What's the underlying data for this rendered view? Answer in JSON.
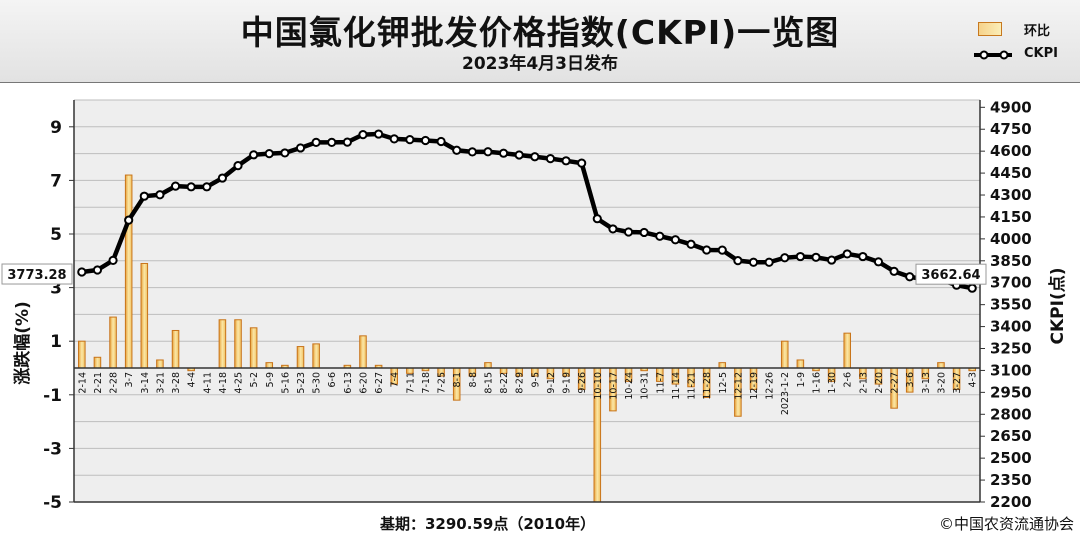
{
  "header": {
    "title": "中国氯化钾批发价格指数(CKPI)一览图",
    "subtitle": "2023年4月3日发布"
  },
  "footer": {
    "base": "基期：3290.59点（2010年）",
    "copyright": "©中国农资流通协会"
  },
  "chart_data": {
    "type": "bar+line",
    "title": "中国氯化钾批发价格指数(CKPI)一览图",
    "subtitle": "2023年4月3日发布",
    "ylabel_left": "涨跌幅(%)",
    "ylabel_right": "CKPI(点)",
    "ylim_left": [
      -5,
      10
    ],
    "ylim_right": [
      2200,
      4950
    ],
    "yticks_left": [
      9,
      7,
      5,
      3,
      1,
      -1,
      -3,
      -5
    ],
    "yticks_right": [
      4900,
      4750,
      4600,
      4450,
      4300,
      4150,
      4000,
      3850,
      3700,
      3550,
      3400,
      3250,
      3100,
      2950,
      2800,
      2650,
      2500,
      2350,
      2200
    ],
    "grid": true,
    "legend_position": "top-right",
    "categories": [
      "2-14",
      "2-21",
      "2-28",
      "3-7",
      "3-14",
      "3-21",
      "3-28",
      "4-4",
      "4-11",
      "4-18",
      "4-25",
      "5-2",
      "5-9",
      "5-16",
      "5-23",
      "5-30",
      "6-6",
      "6-13",
      "6-20",
      "6-27",
      "7-4",
      "7-11",
      "7-18",
      "7-25",
      "8-1",
      "8-8",
      "8-15",
      "8-22",
      "8-29",
      "9-5",
      "9-12",
      "9-19",
      "9-26",
      "10-10",
      "10-17",
      "10-24",
      "10-31",
      "11-7",
      "11-14",
      "11-21",
      "11-28",
      "12-5",
      "12-12",
      "12-19",
      "12-26",
      "2023-1-2",
      "1-9",
      "1-16",
      "1-30",
      "2-6",
      "2-13",
      "2-20",
      "2-27",
      "3-6",
      "3-13",
      "3-20",
      "3-27",
      "4-3"
    ],
    "series": [
      {
        "name": "环比",
        "kind": "bar",
        "values": [
          1.0,
          0.4,
          1.9,
          7.2,
          3.9,
          0.3,
          1.4,
          -0.1,
          0.0,
          1.8,
          1.8,
          1.5,
          0.2,
          0.1,
          0.8,
          0.9,
          0.0,
          0.1,
          1.2,
          0.1,
          -0.6,
          -0.2,
          -0.1,
          -0.3,
          -1.2,
          -0.3,
          0.2,
          -0.2,
          -0.3,
          -0.3,
          -0.4,
          -0.3,
          -0.8,
          -5.0,
          -1.6,
          -0.5,
          -0.1,
          -0.5,
          -0.6,
          -0.7,
          -1.1,
          0.2,
          -1.8,
          -0.8,
          0.0,
          1.0,
          0.3,
          -0.1,
          -0.5,
          1.3,
          -0.4,
          -0.6,
          -1.5,
          -0.9,
          -0.4,
          0.2,
          -0.8,
          -0.1
        ]
      },
      {
        "name": "CKPI",
        "kind": "line",
        "values": [
          3773.28,
          3787,
          3853,
          4128,
          4292,
          4302,
          4361,
          4356,
          4356,
          4416,
          4501,
          4575,
          4583,
          4588,
          4622,
          4660,
          4660,
          4662,
          4713,
          4717,
          4684,
          4679,
          4673,
          4666,
          4606,
          4595,
          4596,
          4586,
          4574,
          4562,
          4549,
          4534,
          4518,
          4138,
          4068,
          4047,
          4044,
          4018,
          3994,
          3963,
          3924,
          3923,
          3851,
          3840,
          3840,
          3871,
          3879,
          3874,
          3855,
          3897,
          3879,
          3843,
          3778,
          3741,
          3722,
          3721,
          3683,
          3662.64
        ]
      }
    ],
    "annotations": [
      "3773.28",
      "3662.64"
    ]
  }
}
